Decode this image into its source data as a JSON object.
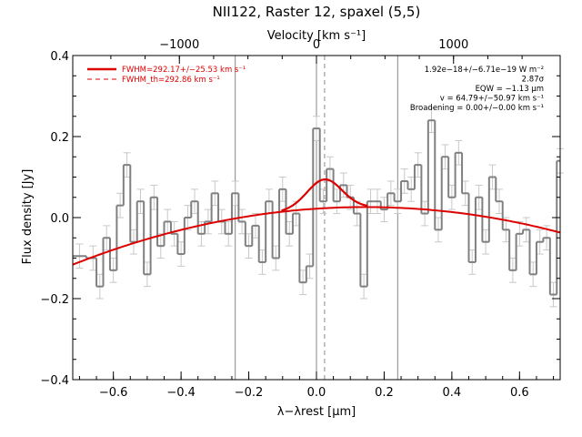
{
  "chart_data": {
    "type": "line",
    "title": "NII122, Raster 12, spaxel (5,5)",
    "xlabel": "λ−λrest [μm]",
    "ylabel": "Flux density [Jy]",
    "top_xlabel": "Velocity [km s⁻¹]",
    "xlim": [
      -0.72,
      0.72
    ],
    "ylim": [
      -0.4,
      0.4
    ],
    "x_ticks": [
      -0.6,
      -0.4,
      -0.2,
      0.0,
      0.2,
      0.4,
      0.6
    ],
    "x_tick_labels": [
      "−0.6",
      "−0.4",
      "−0.2",
      "0.0",
      "0.2",
      "0.4",
      "0.6"
    ],
    "y_ticks": [
      -0.4,
      -0.2,
      0.0,
      0.2,
      0.4
    ],
    "y_tick_labels": [
      "−0.4",
      "−0.2",
      "0.0",
      "0.2",
      "0.4"
    ],
    "top_ticks_velocity": [
      -1000,
      0,
      1000
    ],
    "top_tick_labels": [
      "−1000",
      "0",
      "1000"
    ],
    "legend": {
      "placement": "top-left",
      "entries": [
        {
          "label": "FWHM=292.17+/−25.53 km s⁻¹",
          "style": "solid",
          "color": "#dd0000"
        },
        {
          "label": "FWHM_th=292.86 km s⁻¹",
          "style": "dashed",
          "color": "#dd0000"
        }
      ]
    },
    "annotations": [
      "1.92e−18+/−6.71e−19 W m⁻²",
      "2.87σ",
      "EQW = −1.13 μm",
      "v = 64.79+/−50.97 km s⁻¹",
      "Broadening = 0.00+/−0.00 km s⁻¹"
    ],
    "vertical_lines": [
      {
        "x": -0.24,
        "style": "solid",
        "color": "#888888"
      },
      {
        "x": 0.0,
        "style": "solid",
        "color": "#888888"
      },
      {
        "x": 0.024,
        "style": "dashed",
        "color": "#888888"
      },
      {
        "x": 0.24,
        "style": "solid",
        "color": "#888888"
      }
    ],
    "spectrum": {
      "name": "data",
      "color": "#808080",
      "x": [
        -0.7,
        -0.66,
        -0.64,
        -0.62,
        -0.6,
        -0.58,
        -0.56,
        -0.54,
        -0.52,
        -0.5,
        -0.48,
        -0.46,
        -0.44,
        -0.42,
        -0.4,
        -0.38,
        -0.36,
        -0.34,
        -0.32,
        -0.3,
        -0.28,
        -0.26,
        -0.24,
        -0.22,
        -0.2,
        -0.18,
        -0.16,
        -0.14,
        -0.12,
        -0.1,
        -0.08,
        -0.06,
        -0.04,
        -0.02,
        0.0,
        0.02,
        0.04,
        0.06,
        0.08,
        0.1,
        0.12,
        0.14,
        0.16,
        0.18,
        0.2,
        0.22,
        0.24,
        0.26,
        0.28,
        0.3,
        0.32,
        0.34,
        0.36,
        0.38,
        0.4,
        0.42,
        0.44,
        0.46,
        0.48,
        0.5,
        0.52,
        0.54,
        0.56,
        0.58,
        0.6,
        0.62,
        0.64,
        0.66,
        0.68,
        0.7,
        0.72
      ],
      "y": [
        -0.095,
        -0.1,
        -0.17,
        -0.05,
        -0.13,
        0.03,
        0.13,
        -0.06,
        0.04,
        -0.14,
        0.05,
        -0.07,
        -0.01,
        -0.04,
        -0.09,
        0.0,
        0.04,
        -0.04,
        -0.01,
        0.06,
        -0.01,
        -0.04,
        0.06,
        -0.01,
        -0.07,
        -0.02,
        -0.11,
        0.04,
        -0.1,
        0.07,
        -0.04,
        0.01,
        -0.16,
        -0.12,
        0.22,
        0.04,
        0.12,
        0.04,
        0.08,
        0.05,
        0.01,
        -0.17,
        0.04,
        0.04,
        0.02,
        0.06,
        0.04,
        0.09,
        0.07,
        0.13,
        0.01,
        0.24,
        -0.03,
        0.15,
        0.05,
        0.16,
        0.06,
        -0.11,
        0.05,
        -0.06,
        0.1,
        0.04,
        -0.03,
        -0.13,
        -0.04,
        -0.03,
        -0.14,
        -0.06,
        -0.05,
        -0.19,
        0.14
      ],
      "yerr": 0.03
    },
    "fit": {
      "name": "line fit",
      "color": "#dd0000",
      "continuum": {
        "a": 0.022,
        "b": 0.055,
        "c": -0.19
      },
      "gaussian": {
        "center": 0.024,
        "amplitude": 0.071,
        "fwhm": 0.12
      }
    }
  }
}
